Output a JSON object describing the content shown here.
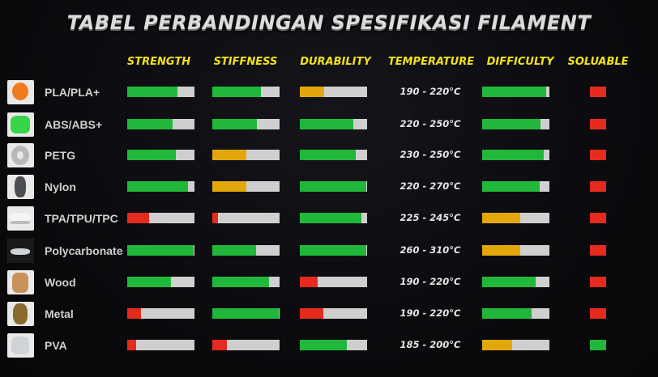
{
  "title": "TABEL PERBANDINGAN SPESIFIKASI FILAMENT",
  "headers": {
    "strength": "STRENGTH",
    "stiffness": "STIFFNESS",
    "durability": "DURABILITY",
    "temperature": "TEMPERATURE",
    "difficulty": "DIFFICULTY",
    "soluable": "SOLUABLE"
  },
  "colors": {
    "green": "#21b73b",
    "orange": "#e2a80b",
    "red": "#e52a1e",
    "track": "#cfcfcf",
    "header": "#f2e21a"
  },
  "rows": [
    {
      "name": "PLA/PLA+",
      "icon": "pla-spool-icon",
      "temperature": "190 - 220°C",
      "strength": {
        "level": 0.75,
        "color": "green"
      },
      "stiffness": {
        "level": 0.72,
        "color": "green"
      },
      "durability": {
        "level": 0.36,
        "color": "orange"
      },
      "difficulty": {
        "level": 0.95,
        "color": "green"
      },
      "soluable": "red"
    },
    {
      "name": "ABS/ABS+",
      "icon": "abs-spool-icon",
      "temperature": "220 - 250°C",
      "strength": {
        "level": 0.67,
        "color": "green"
      },
      "stiffness": {
        "level": 0.66,
        "color": "green"
      },
      "durability": {
        "level": 0.79,
        "color": "green"
      },
      "difficulty": {
        "level": 0.87,
        "color": "green"
      },
      "soluable": "red"
    },
    {
      "name": "PETG",
      "icon": "petg-spool-icon",
      "temperature": "230 - 250°C",
      "strength": {
        "level": 0.72,
        "color": "green"
      },
      "stiffness": {
        "level": 0.5,
        "color": "orange"
      },
      "durability": {
        "level": 0.83,
        "color": "green"
      },
      "difficulty": {
        "level": 0.91,
        "color": "green"
      },
      "soluable": "red"
    },
    {
      "name": "Nylon",
      "icon": "nylon-dragon-icon",
      "temperature": "220 - 270°C",
      "strength": {
        "level": 0.9,
        "color": "green"
      },
      "stiffness": {
        "level": 0.5,
        "color": "orange"
      },
      "durability": {
        "level": 0.99,
        "color": "green"
      },
      "difficulty": {
        "level": 0.86,
        "color": "green"
      },
      "soluable": "red"
    },
    {
      "name": "TPA/TPU/TPC",
      "icon": "tpu-shoe-icon",
      "temperature": "225 - 245°C",
      "strength": {
        "level": 0.33,
        "color": "red"
      },
      "stiffness": {
        "level": 0.09,
        "color": "red"
      },
      "durability": {
        "level": 0.91,
        "color": "green"
      },
      "difficulty": {
        "level": 0.57,
        "color": "orange"
      },
      "soluable": "red"
    },
    {
      "name": "Polycarbonate",
      "icon": "polycarbonate-part-icon",
      "temperature": "260 - 310°C",
      "strength": {
        "level": 0.99,
        "color": "green"
      },
      "stiffness": {
        "level": 0.65,
        "color": "green"
      },
      "durability": {
        "level": 0.99,
        "color": "green"
      },
      "difficulty": {
        "level": 0.57,
        "color": "orange"
      },
      "soluable": "red"
    },
    {
      "name": "Wood",
      "icon": "wood-vase-icon",
      "temperature": "190 - 220°C",
      "strength": {
        "level": 0.65,
        "color": "green"
      },
      "stiffness": {
        "level": 0.84,
        "color": "green"
      },
      "durability": {
        "level": 0.26,
        "color": "red"
      },
      "difficulty": {
        "level": 0.8,
        "color": "green"
      },
      "soluable": "red"
    },
    {
      "name": "Metal",
      "icon": "metal-bust-icon",
      "temperature": "190 - 220°C",
      "strength": {
        "level": 0.2,
        "color": "red"
      },
      "stiffness": {
        "level": 0.99,
        "color": "green"
      },
      "durability": {
        "level": 0.35,
        "color": "red"
      },
      "difficulty": {
        "level": 0.73,
        "color": "green"
      },
      "soluable": "red"
    },
    {
      "name": "PVA",
      "icon": "pva-part-icon",
      "temperature": "185 - 200°C",
      "strength": {
        "level": 0.13,
        "color": "red"
      },
      "stiffness": {
        "level": 0.22,
        "color": "red"
      },
      "durability": {
        "level": 0.7,
        "color": "green"
      },
      "difficulty": {
        "level": 0.45,
        "color": "orange"
      },
      "soluable": "green"
    }
  ]
}
